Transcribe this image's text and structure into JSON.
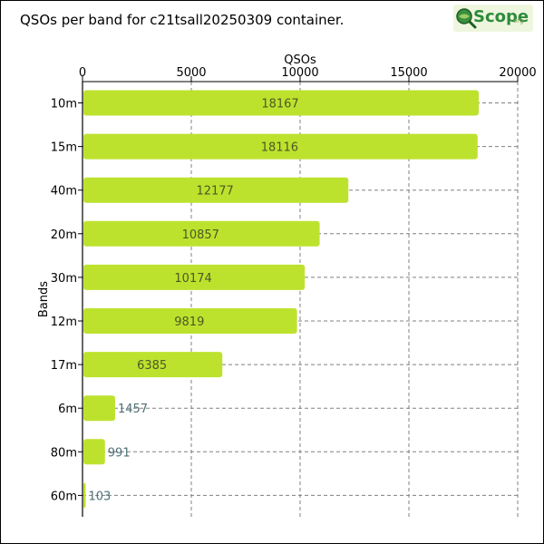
{
  "title": "QSOs per band for c21tsall20250309 container.",
  "logo": {
    "name": "Scope",
    "suffix": "org"
  },
  "colors": {
    "bar": "#bde22e",
    "bar_label_inside": "#4a5a24",
    "bar_label_outside": "#4f6f78",
    "grid": "#808080",
    "axis": "#000000"
  },
  "chart_data": {
    "type": "bar",
    "orientation": "horizontal",
    "title": "QSOs per band for c21tsall20250309 container.",
    "xlabel": "QSOs",
    "ylabel": "Bands",
    "xlim": [
      0,
      20000
    ],
    "xticks": [
      0,
      5000,
      10000,
      15000,
      20000
    ],
    "xaxis_position": "top",
    "grid": true,
    "categories": [
      "10m",
      "15m",
      "40m",
      "20m",
      "30m",
      "12m",
      "17m",
      "6m",
      "80m",
      "60m"
    ],
    "values": [
      18167,
      18116,
      12177,
      10857,
      10174,
      9819,
      6385,
      1457,
      991,
      103
    ]
  }
}
